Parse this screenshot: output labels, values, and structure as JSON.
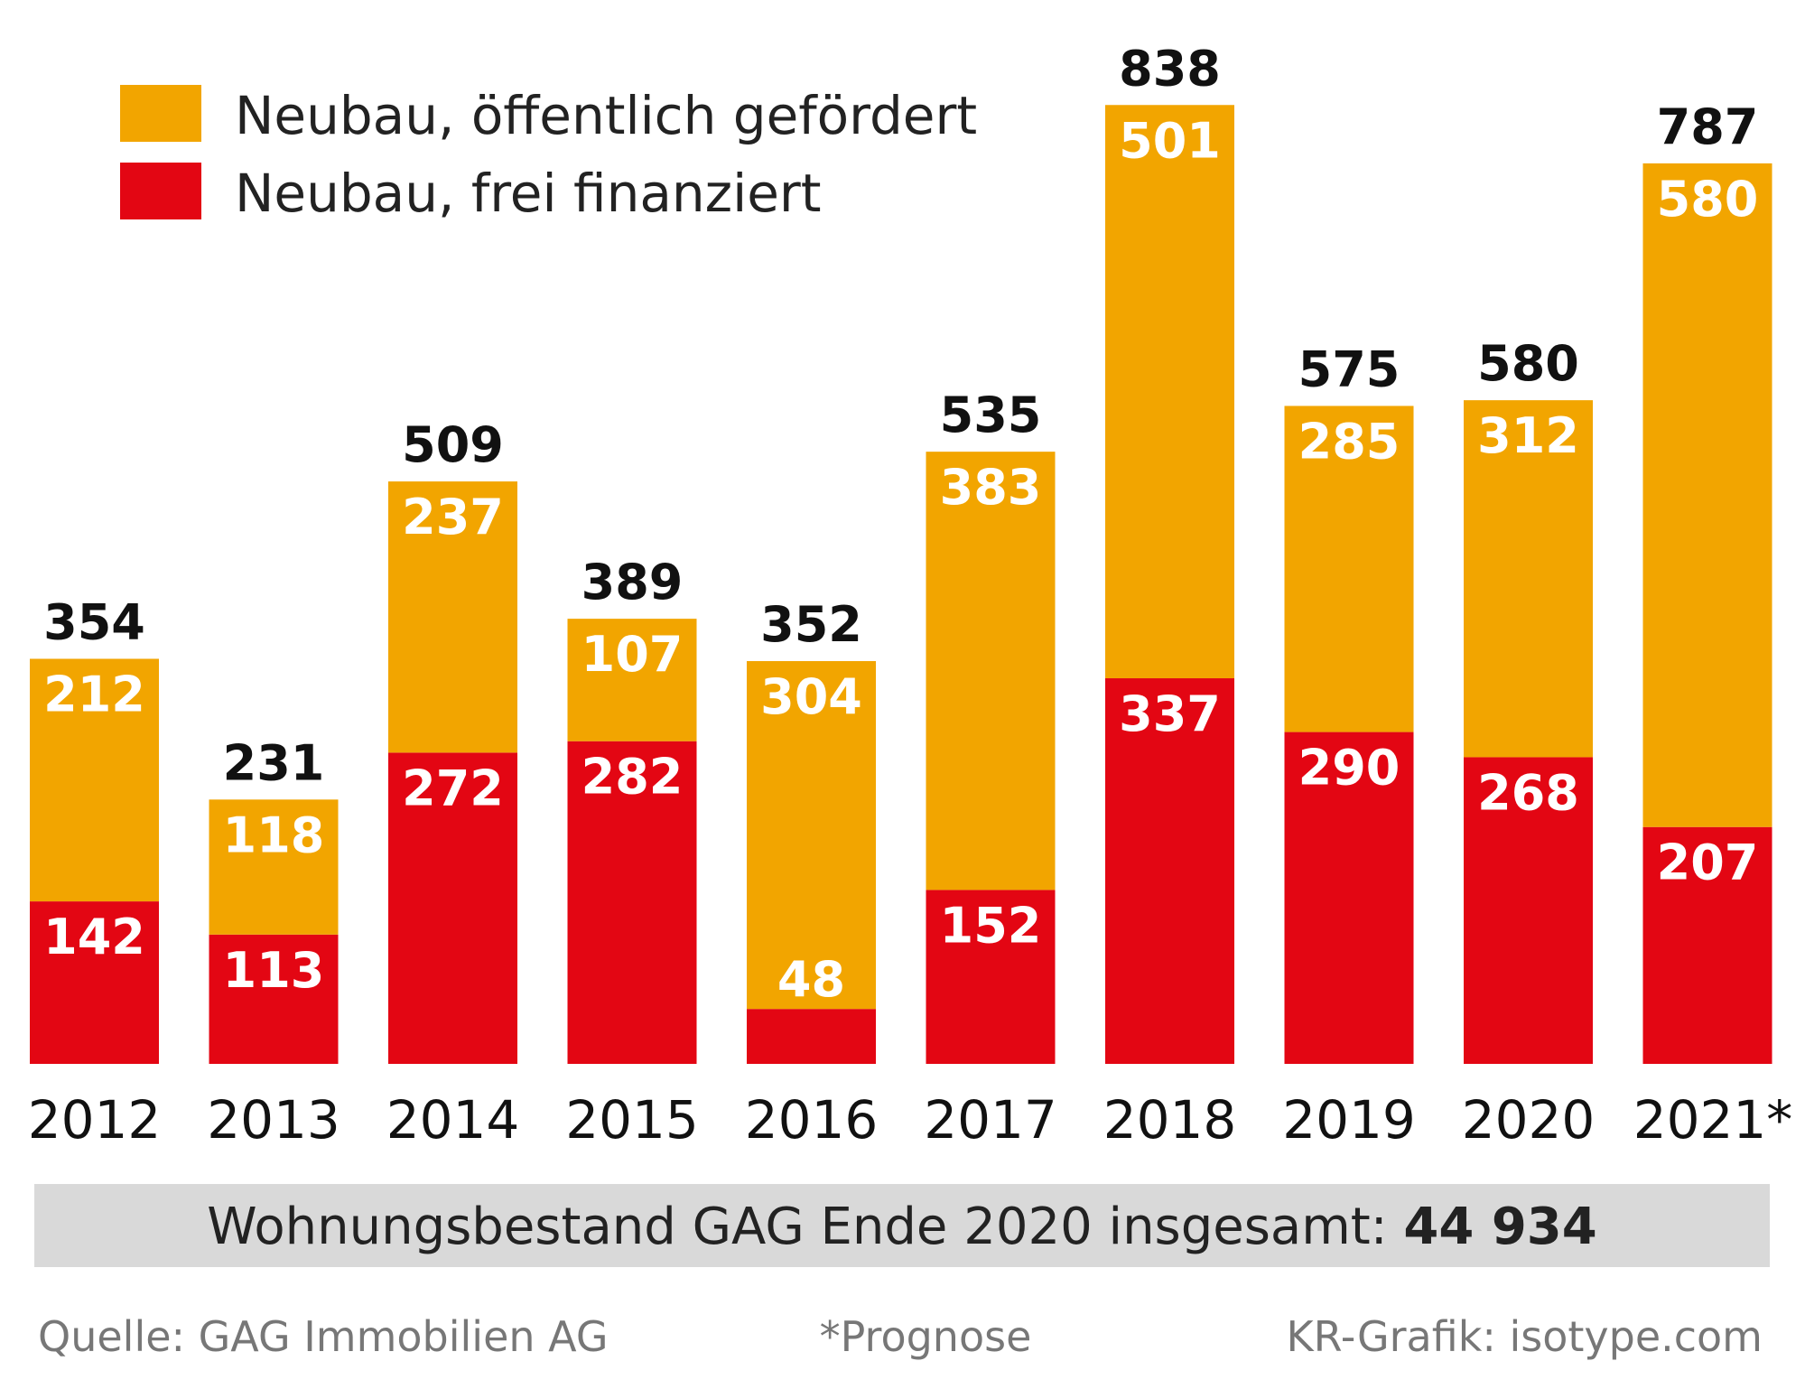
{
  "chart_data": {
    "type": "bar",
    "stacked": true,
    "categories": [
      "2012",
      "2013",
      "2014",
      "2015",
      "2016",
      "2017",
      "2018",
      "2019",
      "2020",
      "2021*"
    ],
    "series": [
      {
        "name": "Neubau, frei finanziert",
        "color": "#E30613",
        "values": [
          142,
          113,
          272,
          282,
          48,
          152,
          337,
          290,
          268,
          207
        ]
      },
      {
        "name": "Neubau, öffentlich gefördert",
        "color": "#F2A500",
        "values": [
          212,
          118,
          237,
          107,
          304,
          383,
          501,
          285,
          312,
          580
        ]
      }
    ],
    "totals": [
      354,
      231,
      509,
      389,
      352,
      535,
      838,
      575,
      580,
      787
    ],
    "ylim": [
      0,
      850
    ],
    "grid": false,
    "legend": "top-left",
    "summary": {
      "text": "Wohnungsbestand GAG Ende 2020 insgesamt: ",
      "value": "44 934"
    },
    "footer": {
      "source": "Quelle: GAG Immobilien AG",
      "note": "*Prognose",
      "credit": "KR-Grafik: isotype.com"
    }
  }
}
